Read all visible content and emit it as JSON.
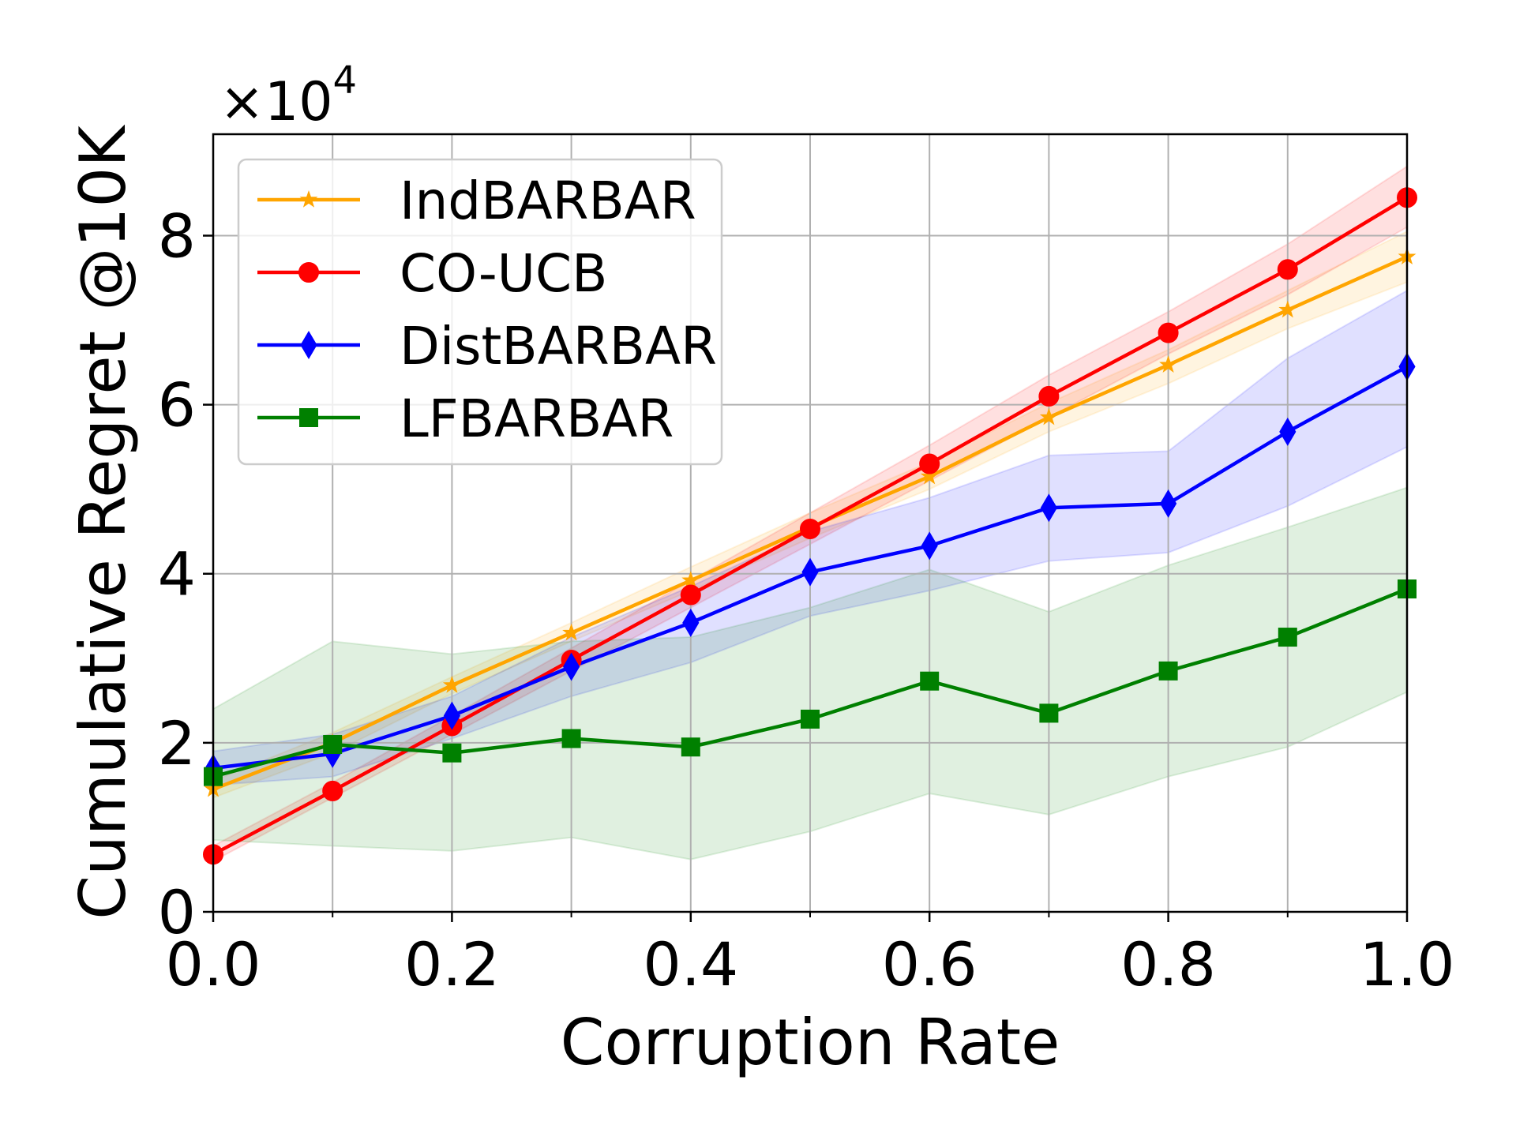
{
  "chart_data": {
    "type": "line",
    "title": "",
    "xlabel": "Corruption Rate",
    "ylabel": "Cumulative Regret @10K",
    "y_multiplier_label": "×10",
    "y_multiplier_exponent": "4",
    "xlim": [
      0.0,
      1.0
    ],
    "ylim": [
      0,
      9.2
    ],
    "grid": true,
    "legend_position": "upper left",
    "x_ticks": [
      0.0,
      0.2,
      0.4,
      0.6,
      0.8,
      1.0
    ],
    "x_tick_labels": [
      "0.0",
      "0.2",
      "0.4",
      "0.6",
      "0.8",
      "1.0"
    ],
    "x_minor_ticks": [
      0.1,
      0.3,
      0.5,
      0.7,
      0.9
    ],
    "y_ticks": [
      0,
      2,
      4,
      6,
      8
    ],
    "y_tick_labels": [
      "0",
      "2",
      "4",
      "6",
      "8"
    ],
    "x": [
      0.0,
      0.1,
      0.2,
      0.3,
      0.4,
      0.5,
      0.6,
      0.7,
      0.8,
      0.9,
      1.0
    ],
    "series": [
      {
        "name": "IndBARBAR",
        "color": "#ffa500",
        "marker": "star",
        "values": [
          1.45,
          2.0,
          2.68,
          3.3,
          3.92,
          4.55,
          5.15,
          5.85,
          6.47,
          7.12,
          7.75
        ],
        "lower": [
          1.35,
          1.88,
          2.58,
          3.2,
          3.8,
          4.42,
          5.0,
          5.68,
          6.25,
          6.9,
          7.45
        ],
        "upper": [
          1.55,
          2.12,
          2.78,
          3.42,
          4.08,
          4.72,
          5.32,
          6.02,
          6.65,
          7.35,
          8.05
        ]
      },
      {
        "name": "CO-UCB",
        "color": "#ff0000",
        "marker": "circle",
        "values": [
          0.68,
          1.43,
          2.2,
          2.98,
          3.75,
          4.53,
          5.3,
          6.1,
          6.85,
          7.6,
          8.45
        ],
        "lower": [
          0.6,
          1.35,
          2.1,
          2.85,
          3.6,
          4.35,
          5.1,
          5.85,
          6.6,
          7.3,
          8.1
        ],
        "upper": [
          0.78,
          1.53,
          2.32,
          3.12,
          3.92,
          4.72,
          5.52,
          6.35,
          7.1,
          7.9,
          8.82
        ]
      },
      {
        "name": "DistBARBAR",
        "color": "#0000ff",
        "marker": "thin_diamond",
        "values": [
          1.7,
          1.87,
          2.32,
          2.9,
          3.42,
          4.02,
          4.33,
          4.78,
          4.83,
          5.68,
          6.45
        ],
        "lower": [
          1.5,
          1.6,
          2.05,
          2.55,
          2.95,
          3.5,
          3.8,
          4.15,
          4.25,
          4.8,
          5.5
        ],
        "upper": [
          1.9,
          2.1,
          2.55,
          3.25,
          3.85,
          4.5,
          4.9,
          5.4,
          5.45,
          6.55,
          7.35
        ]
      },
      {
        "name": "LFBARBAR",
        "color": "#008000",
        "marker": "square",
        "values": [
          1.6,
          1.98,
          1.88,
          2.05,
          1.95,
          2.28,
          2.73,
          2.35,
          2.85,
          3.25,
          3.82
        ],
        "lower": [
          0.85,
          0.78,
          0.72,
          0.88,
          0.62,
          0.95,
          1.4,
          1.15,
          1.6,
          1.95,
          2.6
        ],
        "upper": [
          2.4,
          3.2,
          3.05,
          3.2,
          3.25,
          3.6,
          4.05,
          3.55,
          4.1,
          4.55,
          5.02
        ]
      }
    ]
  }
}
